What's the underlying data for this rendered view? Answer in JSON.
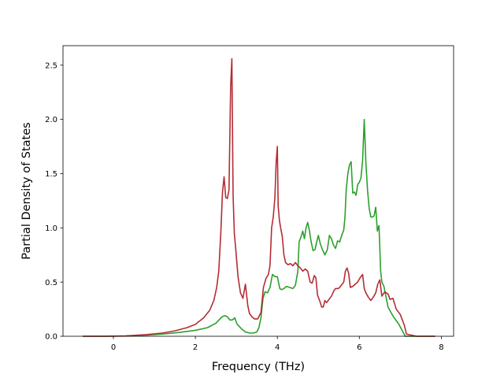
{
  "chart_data": {
    "type": "line",
    "title": "",
    "xlabel": "Frequency (THz)",
    "ylabel": "Partial Density of States",
    "xlim": [
      -1.23,
      8.3
    ],
    "ylim": [
      0,
      2.68
    ],
    "xticks": [
      0,
      2,
      4,
      6,
      8
    ],
    "xtick_labels": [
      "0",
      "2",
      "4",
      "6",
      "8"
    ],
    "yticks": [
      0.0,
      0.5,
      1.0,
      1.5,
      2.0,
      2.5
    ],
    "ytick_labels": [
      "0.0",
      "0.5",
      "1.0",
      "1.5",
      "2.0",
      "2.5"
    ],
    "grid": false,
    "legend": "none",
    "series": [
      {
        "color": "#2ca02c",
        "x": [
          -0.75,
          -0.2,
          0.3,
          0.8,
          1.2,
          1.6,
          2.0,
          2.3,
          2.5,
          2.6,
          2.65,
          2.72,
          2.78,
          2.84,
          2.9,
          2.96,
          3.02,
          3.12,
          3.22,
          3.32,
          3.42,
          3.5,
          3.55,
          3.6,
          3.65,
          3.7,
          3.76,
          3.82,
          3.88,
          3.94,
          4.0,
          4.06,
          4.1,
          4.16,
          4.22,
          4.3,
          4.38,
          4.44,
          4.5,
          4.53,
          4.58,
          4.62,
          4.66,
          4.7,
          4.74,
          4.78,
          4.82,
          4.87,
          4.92,
          4.96,
          5.0,
          5.05,
          5.1,
          5.16,
          5.22,
          5.27,
          5.32,
          5.37,
          5.42,
          5.47,
          5.52,
          5.57,
          5.62,
          5.65,
          5.68,
          5.72,
          5.76,
          5.8,
          5.84,
          5.88,
          5.92,
          5.96,
          6.0,
          6.04,
          6.08,
          6.12,
          6.16,
          6.2,
          6.24,
          6.28,
          6.32,
          6.36,
          6.4,
          6.44,
          6.48,
          6.52,
          6.55,
          6.6,
          6.7,
          6.8,
          6.85,
          6.95,
          7.05,
          7.12,
          7.2,
          7.5,
          7.85
        ],
        "y": [
          0.0,
          0.0,
          0.002,
          0.01,
          0.02,
          0.035,
          0.055,
          0.08,
          0.12,
          0.16,
          0.18,
          0.19,
          0.18,
          0.15,
          0.15,
          0.17,
          0.11,
          0.07,
          0.04,
          0.03,
          0.03,
          0.04,
          0.08,
          0.17,
          0.35,
          0.41,
          0.4,
          0.45,
          0.57,
          0.55,
          0.55,
          0.44,
          0.43,
          0.44,
          0.46,
          0.45,
          0.44,
          0.47,
          0.6,
          0.87,
          0.92,
          0.97,
          0.9,
          1.0,
          1.05,
          0.98,
          0.88,
          0.79,
          0.8,
          0.87,
          0.93,
          0.85,
          0.8,
          0.75,
          0.8,
          0.93,
          0.9,
          0.84,
          0.81,
          0.88,
          0.87,
          0.93,
          0.98,
          1.1,
          1.35,
          1.5,
          1.58,
          1.61,
          1.32,
          1.33,
          1.3,
          1.4,
          1.42,
          1.46,
          1.62,
          2.0,
          1.6,
          1.35,
          1.18,
          1.1,
          1.1,
          1.11,
          1.19,
          0.97,
          1.02,
          0.6,
          0.5,
          0.46,
          0.27,
          0.2,
          0.17,
          0.12,
          0.05,
          0.0,
          0.0,
          0.0,
          0.0
        ]
      },
      {
        "color": "#b32d35",
        "x": [
          -0.75,
          -0.2,
          0.3,
          0.8,
          1.2,
          1.5,
          1.8,
          2.0,
          2.2,
          2.35,
          2.45,
          2.52,
          2.57,
          2.62,
          2.66,
          2.7,
          2.74,
          2.78,
          2.82,
          2.86,
          2.89,
          2.92,
          2.95,
          2.99,
          3.04,
          3.1,
          3.16,
          3.22,
          3.28,
          3.32,
          3.38,
          3.44,
          3.52,
          3.6,
          3.66,
          3.72,
          3.78,
          3.82,
          3.86,
          3.9,
          3.94,
          3.97,
          4.0,
          4.02,
          4.05,
          4.08,
          4.12,
          4.16,
          4.2,
          4.26,
          4.32,
          4.38,
          4.44,
          4.5,
          4.56,
          4.62,
          4.68,
          4.74,
          4.8,
          4.85,
          4.9,
          4.94,
          4.98,
          5.04,
          5.08,
          5.12,
          5.16,
          5.2,
          5.26,
          5.32,
          5.38,
          5.42,
          5.48,
          5.52,
          5.58,
          5.62,
          5.66,
          5.7,
          5.74,
          5.78,
          5.84,
          5.9,
          5.96,
          6.02,
          6.08,
          6.12,
          6.16,
          6.22,
          6.28,
          6.34,
          6.4,
          6.45,
          6.5,
          6.55,
          6.62,
          6.7,
          6.75,
          6.82,
          6.9,
          7.0,
          7.1,
          7.15,
          7.4,
          7.85
        ],
        "y": [
          0.0,
          0.0,
          0.003,
          0.015,
          0.03,
          0.05,
          0.08,
          0.11,
          0.17,
          0.24,
          0.33,
          0.45,
          0.6,
          0.95,
          1.32,
          1.47,
          1.28,
          1.27,
          1.35,
          2.3,
          2.56,
          1.3,
          0.95,
          0.78,
          0.55,
          0.4,
          0.35,
          0.48,
          0.28,
          0.21,
          0.18,
          0.16,
          0.16,
          0.22,
          0.45,
          0.53,
          0.57,
          0.65,
          1.0,
          1.1,
          1.28,
          1.6,
          1.75,
          1.2,
          1.07,
          1.0,
          0.92,
          0.75,
          0.68,
          0.66,
          0.67,
          0.65,
          0.68,
          0.65,
          0.63,
          0.6,
          0.62,
          0.6,
          0.5,
          0.49,
          0.56,
          0.54,
          0.38,
          0.32,
          0.27,
          0.27,
          0.33,
          0.31,
          0.34,
          0.37,
          0.42,
          0.44,
          0.44,
          0.45,
          0.48,
          0.5,
          0.6,
          0.63,
          0.58,
          0.45,
          0.46,
          0.48,
          0.5,
          0.54,
          0.57,
          0.44,
          0.4,
          0.36,
          0.33,
          0.36,
          0.4,
          0.48,
          0.52,
          0.37,
          0.41,
          0.39,
          0.34,
          0.35,
          0.25,
          0.2,
          0.1,
          0.02,
          0.0,
          0.0
        ]
      }
    ]
  }
}
